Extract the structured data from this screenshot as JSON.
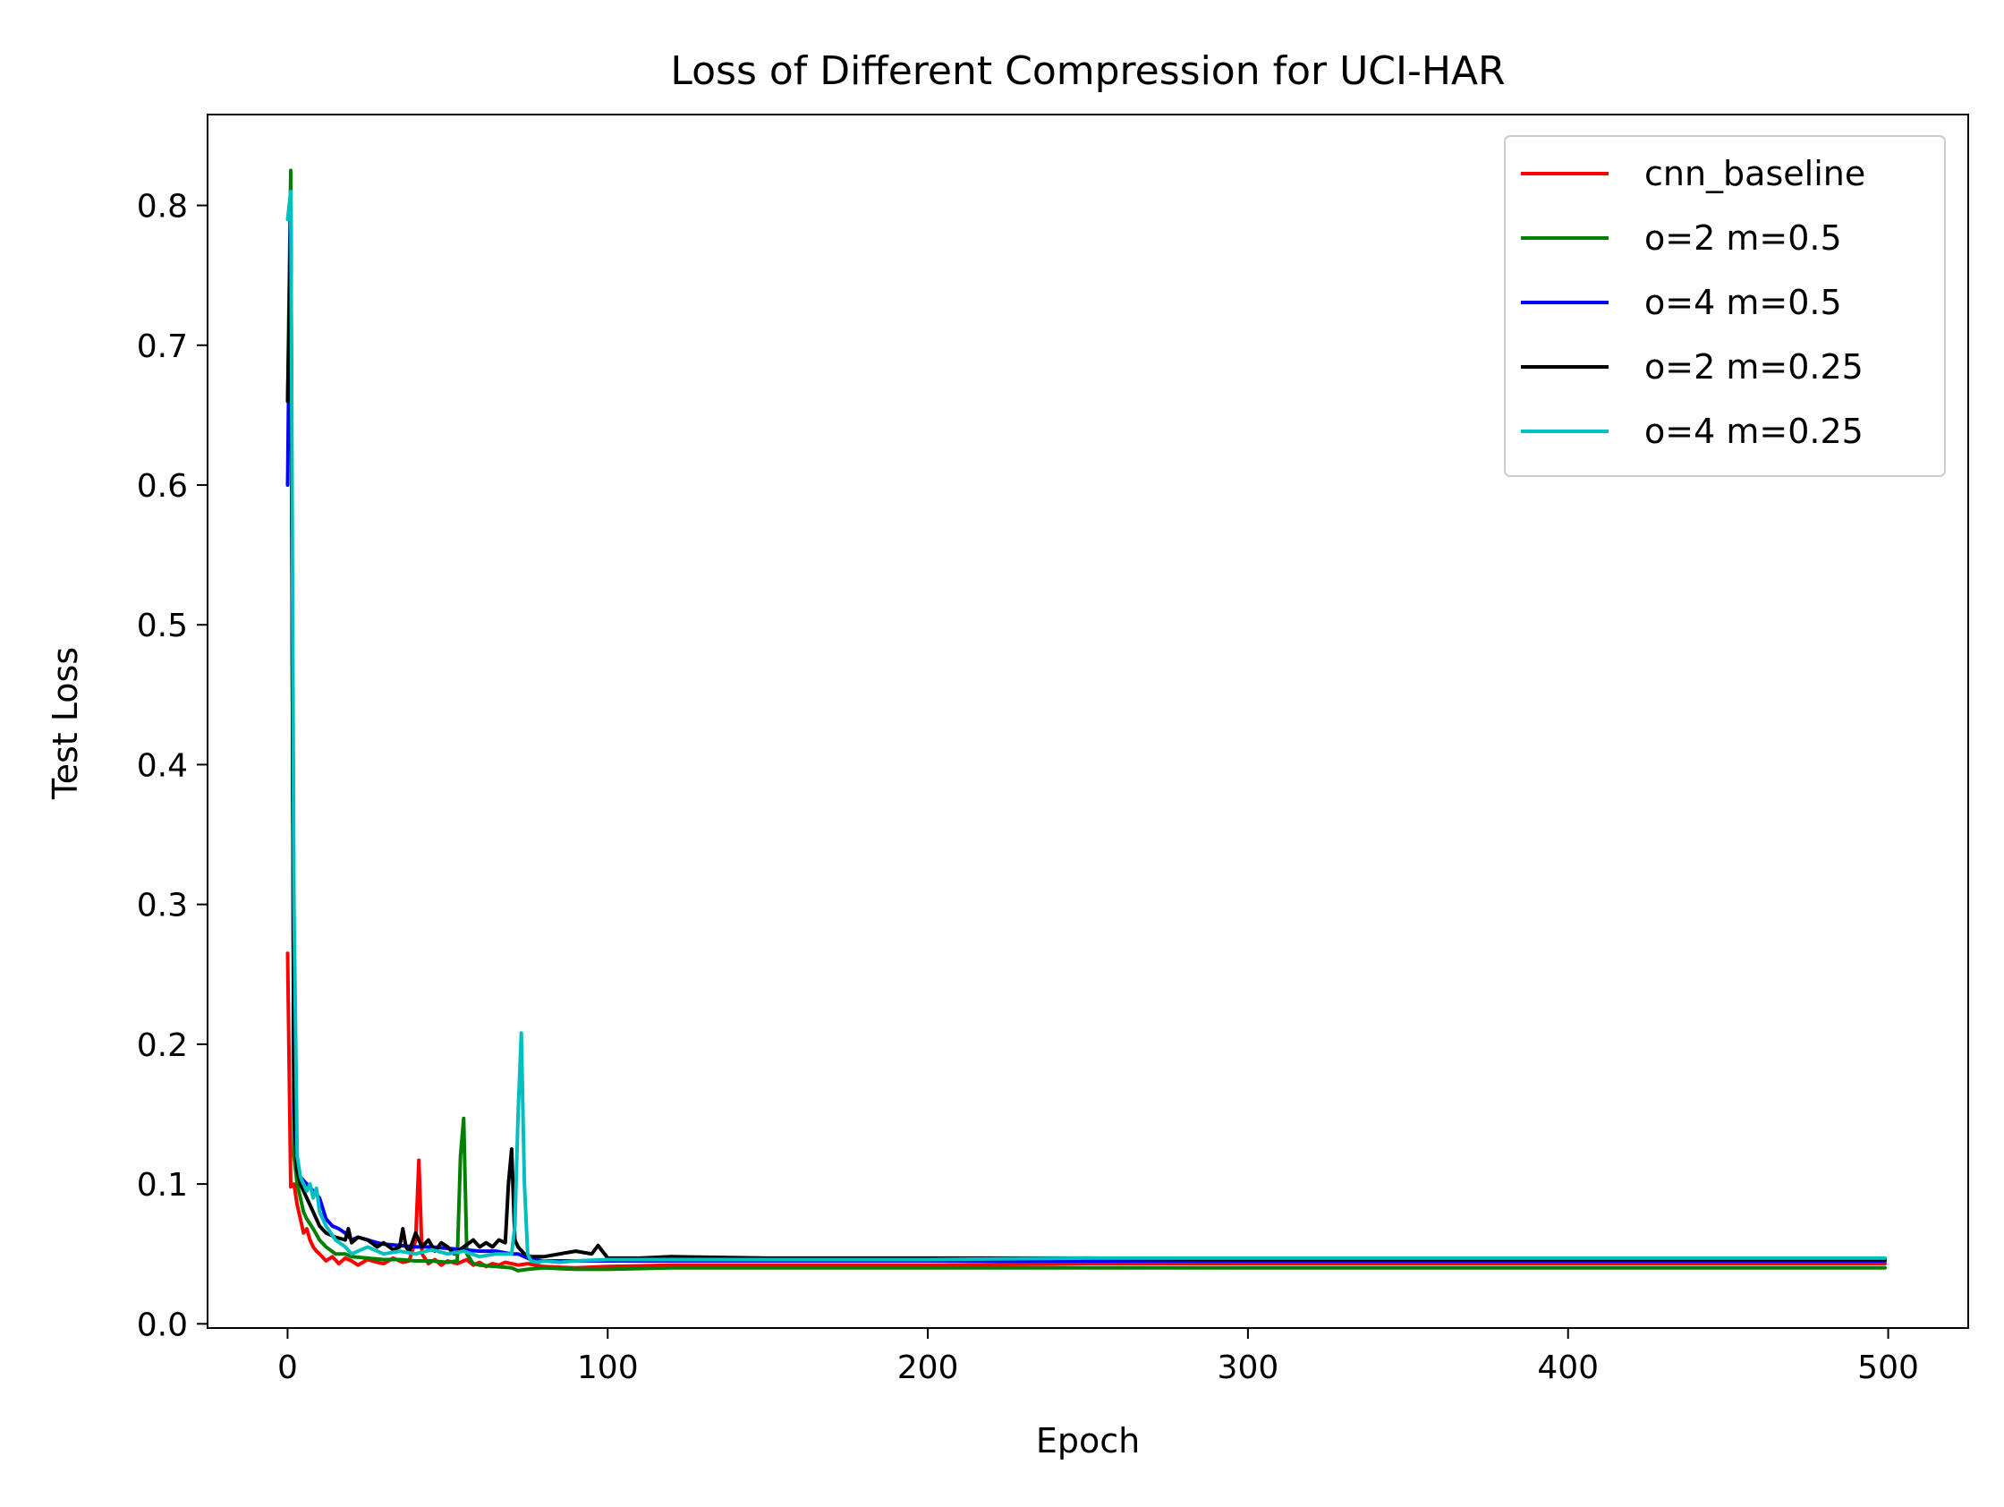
{
  "chart_data": {
    "type": "line",
    "title": "Loss of Different Compression for UCI-HAR",
    "xlabel": "Epoch",
    "ylabel": "Test Loss",
    "xlim": [
      -25,
      525
    ],
    "ylim": [
      -0.003,
      0.865
    ],
    "xticks": [
      0,
      100,
      200,
      300,
      400,
      500
    ],
    "xtick_labels": [
      "0",
      "100",
      "200",
      "300",
      "400",
      "500"
    ],
    "yticks": [
      0.0,
      0.1,
      0.2,
      0.3,
      0.4,
      0.5,
      0.6,
      0.7,
      0.8
    ],
    "ytick_labels": [
      "0.0",
      "0.1",
      "0.2",
      "0.3",
      "0.4",
      "0.5",
      "0.6",
      "0.7",
      "0.8"
    ],
    "grid": false,
    "legend_position": "top-right",
    "series": [
      {
        "name": "cnn_baseline",
        "color": "#ff0000",
        "x": [
          0,
          1,
          2,
          3,
          4,
          5,
          6,
          7,
          8,
          9,
          10,
          12,
          14,
          16,
          18,
          20,
          22,
          25,
          28,
          30,
          33,
          36,
          38,
          40,
          41,
          42,
          44,
          46,
          48,
          50,
          53,
          56,
          58,
          60,
          62,
          64,
          66,
          68,
          70,
          72,
          75,
          80,
          90,
          100,
          120,
          150,
          200,
          250,
          300,
          350,
          400,
          450,
          499
        ],
        "values": [
          0.265,
          0.098,
          0.1,
          0.085,
          0.075,
          0.065,
          0.068,
          0.06,
          0.055,
          0.052,
          0.05,
          0.045,
          0.048,
          0.043,
          0.047,
          0.045,
          0.042,
          0.046,
          0.044,
          0.043,
          0.047,
          0.044,
          0.045,
          0.06,
          0.117,
          0.05,
          0.043,
          0.046,
          0.042,
          0.045,
          0.043,
          0.046,
          0.042,
          0.044,
          0.041,
          0.043,
          0.042,
          0.044,
          0.043,
          0.042,
          0.043,
          0.041,
          0.04,
          0.041,
          0.042,
          0.042,
          0.042,
          0.043,
          0.043,
          0.043,
          0.043,
          0.043,
          0.043
        ]
      },
      {
        "name": "o=2 m=0.5",
        "color": "#008000",
        "x": [
          0,
          1,
          2,
          3,
          4,
          5,
          6,
          8,
          10,
          12,
          15,
          18,
          20,
          25,
          30,
          35,
          40,
          45,
          50,
          53,
          54,
          55,
          56,
          58,
          60,
          65,
          70,
          72,
          75,
          80,
          90,
          100,
          120,
          150,
          200,
          250,
          300,
          350,
          400,
          450,
          499
        ],
        "values": [
          0.66,
          0.825,
          0.12,
          0.1,
          0.09,
          0.08,
          0.075,
          0.068,
          0.06,
          0.055,
          0.05,
          0.05,
          0.048,
          0.047,
          0.046,
          0.046,
          0.045,
          0.045,
          0.044,
          0.045,
          0.12,
          0.147,
          0.05,
          0.043,
          0.042,
          0.041,
          0.04,
          0.038,
          0.039,
          0.04,
          0.039,
          0.039,
          0.04,
          0.04,
          0.04,
          0.04,
          0.04,
          0.04,
          0.04,
          0.04,
          0.04
        ]
      },
      {
        "name": "o=4 m=0.5",
        "color": "#0000ff",
        "x": [
          0,
          1,
          2,
          3,
          4,
          6,
          8,
          10,
          12,
          14,
          16,
          18,
          20,
          22,
          25,
          28,
          30,
          35,
          40,
          45,
          50,
          55,
          60,
          65,
          70,
          72,
          74,
          76,
          80,
          90,
          100,
          110,
          120,
          150,
          200,
          250,
          300,
          350,
          400,
          450,
          499
        ],
        "values": [
          0.6,
          0.81,
          0.15,
          0.11,
          0.105,
          0.1,
          0.095,
          0.09,
          0.075,
          0.07,
          0.068,
          0.065,
          0.06,
          0.062,
          0.06,
          0.058,
          0.057,
          0.056,
          0.055,
          0.055,
          0.054,
          0.053,
          0.052,
          0.052,
          0.05,
          0.05,
          0.048,
          0.046,
          0.045,
          0.045,
          0.045,
          0.045,
          0.045,
          0.045,
          0.045,
          0.045,
          0.045,
          0.045,
          0.045,
          0.045,
          0.045
        ]
      },
      {
        "name": "o=2 m=0.25",
        "color": "#000000",
        "x": [
          0,
          1,
          2,
          3,
          4,
          5,
          6,
          8,
          10,
          12,
          15,
          18,
          19,
          20,
          22,
          25,
          28,
          30,
          33,
          35,
          36,
          37,
          38,
          40,
          42,
          44,
          46,
          48,
          50,
          52,
          55,
          58,
          60,
          62,
          64,
          66,
          68,
          69,
          70,
          71,
          72,
          74,
          76,
          80,
          85,
          90,
          95,
          97,
          98,
          100,
          110,
          120,
          150,
          200,
          250,
          300,
          350,
          400,
          450,
          499
        ],
        "values": [
          0.66,
          0.78,
          0.16,
          0.11,
          0.1,
          0.095,
          0.09,
          0.08,
          0.07,
          0.065,
          0.062,
          0.06,
          0.068,
          0.058,
          0.062,
          0.06,
          0.055,
          0.058,
          0.053,
          0.055,
          0.068,
          0.055,
          0.052,
          0.065,
          0.055,
          0.06,
          0.052,
          0.058,
          0.055,
          0.05,
          0.055,
          0.06,
          0.055,
          0.058,
          0.055,
          0.06,
          0.058,
          0.1,
          0.125,
          0.06,
          0.055,
          0.05,
          0.048,
          0.048,
          0.05,
          0.052,
          0.05,
          0.056,
          0.053,
          0.047,
          0.047,
          0.048,
          0.047,
          0.047,
          0.047,
          0.046,
          0.046,
          0.046,
          0.046,
          0.046
        ]
      },
      {
        "name": "o=4 m=0.25",
        "color": "#00bfbf",
        "x": [
          0,
          1,
          2,
          3,
          4,
          5,
          6,
          7,
          8,
          9,
          10,
          12,
          15,
          18,
          20,
          25,
          30,
          35,
          40,
          45,
          50,
          55,
          60,
          65,
          70,
          71,
          72,
          73,
          74,
          75,
          76,
          78,
          80,
          85,
          90,
          100,
          120,
          150,
          200,
          250,
          300,
          350,
          400,
          450,
          499
        ],
        "values": [
          0.79,
          0.81,
          0.3,
          0.12,
          0.105,
          0.1,
          0.095,
          0.1,
          0.09,
          0.097,
          0.08,
          0.07,
          0.06,
          0.055,
          0.05,
          0.055,
          0.05,
          0.052,
          0.05,
          0.053,
          0.05,
          0.052,
          0.048,
          0.05,
          0.05,
          0.07,
          0.15,
          0.208,
          0.1,
          0.05,
          0.045,
          0.044,
          0.045,
          0.044,
          0.045,
          0.046,
          0.046,
          0.046,
          0.046,
          0.047,
          0.047,
          0.047,
          0.047,
          0.047,
          0.047
        ]
      }
    ]
  }
}
